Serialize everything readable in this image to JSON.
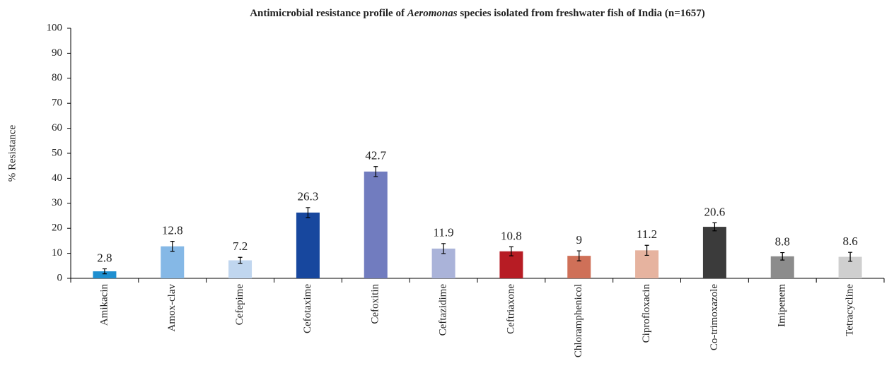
{
  "chart_data": {
    "type": "bar",
    "title_parts": [
      "Antimicrobial resistance profile of ",
      "Aeromonas",
      " species isolated from freshwater fish of India (n=1657)"
    ],
    "y_label": "% Resistance",
    "categories": [
      "Amikacin",
      "Amox-clav",
      "Cefepime",
      "Cefotaxime",
      "Cefoxitin",
      "Ceftazidime",
      "Ceftriaxone",
      "Chloramphenicol",
      "Ciprofloxacin",
      "Co-trimoxazole",
      "Imipenem",
      "Tetracycline"
    ],
    "values": [
      2.8,
      12.8,
      7.2,
      26.3,
      42.7,
      11.9,
      10.8,
      9,
      11.2,
      20.6,
      8.8,
      8.6
    ],
    "errors": [
      1,
      2,
      1.2,
      2,
      2,
      2,
      1.8,
      2,
      2,
      1.6,
      1.5,
      1.8
    ],
    "colors": [
      "#1f8fd0",
      "#85b8e6",
      "#c0d6ef",
      "#17479e",
      "#717cbf",
      "#aab3d9",
      "#b71c24",
      "#cf7058",
      "#e6b39f",
      "#3b3b3b",
      "#8c8c8c",
      "#cfcfcf"
    ],
    "ylim": [
      0,
      100
    ],
    "yticks": [
      0,
      10,
      20,
      30,
      40,
      50,
      60,
      70,
      80,
      90,
      100
    ],
    "grid": false
  }
}
